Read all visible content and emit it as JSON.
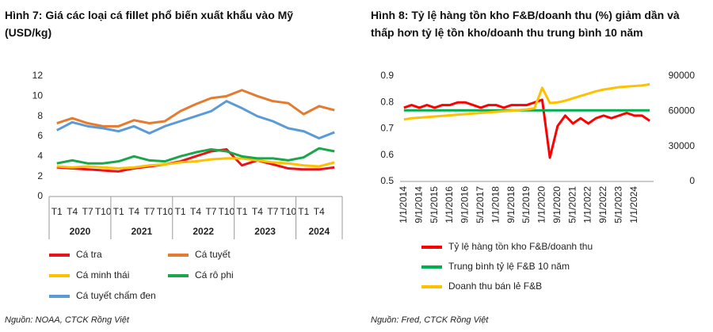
{
  "chart_data": [
    {
      "type": "line",
      "title": "Hình 7: Giá các loại cá fillet phổ biến xuất khẩu vào Mỹ (USD/kg)",
      "source": "Nguồn: NOAA, CTCK Rồng Việt",
      "categories": [
        "T1",
        "T4",
        "T7",
        "T10",
        "T1",
        "T4",
        "T7",
        "T10",
        "T1",
        "T4",
        "T7",
        "T10",
        "T1",
        "T4",
        "T7",
        "T10",
        "T1",
        "T4",
        null
      ],
      "groups": [
        {
          "label": "2020",
          "count": 4
        },
        {
          "label": "2021",
          "count": 4
        },
        {
          "label": "2022",
          "count": 4
        },
        {
          "label": "2023",
          "count": 4
        },
        {
          "label": "2024",
          "count": 3
        }
      ],
      "ylim": [
        0,
        12
      ],
      "yticks": [
        0,
        2,
        4,
        6,
        8,
        10,
        12
      ],
      "grid": false,
      "series": [
        {
          "name": "Cá tra",
          "color": "#e8141b",
          "values": [
            2.9,
            2.8,
            2.7,
            2.6,
            2.5,
            2.8,
            3.0,
            3.2,
            3.5,
            4.0,
            4.5,
            4.7,
            3.1,
            3.6,
            3.2,
            2.8,
            2.7,
            2.7,
            2.9
          ]
        },
        {
          "name": "Cá tuyết",
          "color": "#e47b31",
          "values": [
            7.3,
            7.8,
            7.3,
            7.0,
            7.0,
            7.6,
            7.3,
            7.5,
            8.5,
            9.2,
            9.8,
            10.0,
            10.6,
            10.0,
            9.5,
            9.3,
            8.2,
            9.0,
            8.6
          ]
        },
        {
          "name": "Cá minh thái",
          "color": "#ffc000",
          "values": [
            3.0,
            2.9,
            3.0,
            2.9,
            2.8,
            2.9,
            3.1,
            3.2,
            3.4,
            3.5,
            3.7,
            3.8,
            3.8,
            3.6,
            3.4,
            3.3,
            3.1,
            3.0,
            3.4
          ]
        },
        {
          "name": "Cá rô phi",
          "color": "#1aa64a",
          "values": [
            3.3,
            3.6,
            3.3,
            3.3,
            3.5,
            4.0,
            3.6,
            3.5,
            4.0,
            4.4,
            4.7,
            4.5,
            4.0,
            3.8,
            3.8,
            3.6,
            3.9,
            4.8,
            4.5
          ]
        },
        {
          "name": "Cá tuyết chấm đen",
          "color": "#5b9bd5",
          "values": [
            6.6,
            7.4,
            7.0,
            6.8,
            6.5,
            7.0,
            6.3,
            7.0,
            7.5,
            8.0,
            8.5,
            9.5,
            8.8,
            8.0,
            7.5,
            6.8,
            6.5,
            5.8,
            6.4
          ]
        }
      ]
    },
    {
      "type": "line",
      "title": "Hình 8: Tỷ lệ hàng tồn kho F&B/doanh thu (%) giảm dần và thấp hơn tỷ lệ tồn kho/doanh thu trung bình 10 năm",
      "source": "Nguồn: Fred, CTCK Rồng Việt",
      "categories": [
        "1/1/2014",
        null,
        "9/1/2014",
        null,
        "5/1/2015",
        null,
        "1/1/2016",
        null,
        "9/1/2016",
        null,
        "5/1/2017",
        null,
        "1/1/2018",
        null,
        "9/1/2018",
        null,
        "5/1/2019",
        null,
        "1/1/2020",
        null,
        "9/1/2020",
        null,
        "5/1/2021",
        null,
        "1/1/2022",
        null,
        "9/1/2022",
        null,
        "5/1/2023",
        null,
        "1/1/2024",
        null,
        null
      ],
      "ylim": [
        0.5,
        0.9
      ],
      "yticks": [
        0.5,
        0.6,
        0.7,
        0.8,
        0.9
      ],
      "y2lim": [
        0,
        90000
      ],
      "y2ticks": [
        0,
        30000,
        60000,
        90000
      ],
      "grid": false,
      "series": [
        {
          "name": "Tỷ lệ hàng tồn kho F&B/doanh thu",
          "color": "#ff0000",
          "values": [
            0.78,
            0.79,
            0.78,
            0.79,
            0.78,
            0.79,
            0.79,
            0.8,
            0.8,
            0.79,
            0.78,
            0.79,
            0.79,
            0.78,
            0.79,
            0.79,
            0.79,
            0.8,
            0.81,
            0.59,
            0.71,
            0.75,
            0.72,
            0.74,
            0.72,
            0.74,
            0.75,
            0.74,
            0.75,
            0.76,
            0.75,
            0.75,
            0.73
          ]
        },
        {
          "name": "Trung bình tỷ lệ F&B 10 năm",
          "color": "#00b050",
          "values": [
            0.77,
            0.77,
            0.77,
            0.77,
            0.77,
            0.77,
            0.77,
            0.77,
            0.77,
            0.77,
            0.77,
            0.77,
            0.77,
            0.77,
            0.77,
            0.77,
            0.77,
            0.77,
            0.77,
            0.77,
            0.77,
            0.77,
            0.77,
            0.77,
            0.77,
            0.77,
            0.77,
            0.77,
            0.77,
            0.77,
            0.77,
            0.77,
            0.77
          ]
        },
        {
          "name": "Doanh thu bán lẻ F&B",
          "color": "#ffc000",
          "axis": "y2",
          "values": [
            53000,
            54000,
            54500,
            55000,
            55500,
            56000,
            56500,
            57000,
            57500,
            58000,
            58500,
            59000,
            59500,
            60000,
            60500,
            61000,
            61500,
            62500,
            80000,
            67000,
            67500,
            69000,
            71000,
            73000,
            75000,
            77000,
            78500,
            79500,
            80500,
            81000,
            81500,
            82000,
            83000
          ]
        }
      ]
    }
  ]
}
